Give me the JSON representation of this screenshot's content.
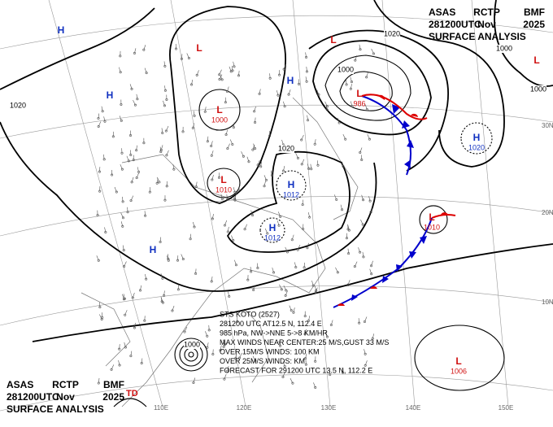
{
  "header_top": [
    [
      "ASAS",
      "RCTP",
      "BMF"
    ],
    [
      "281200UTC",
      "Nov",
      "2025"
    ],
    [
      "SURFACE ANALYSIS"
    ]
  ],
  "header_bottom": [
    [
      "ASAS",
      "RCTP",
      "BMF"
    ],
    [
      "281200UTC",
      "Nov",
      "2025"
    ],
    [
      "SURFACE ANALYSIS"
    ]
  ],
  "centers": [
    {
      "kind": "H"
    },
    {
      "kind": "H"
    },
    {
      "kind": "L"
    },
    {
      "kind": "L"
    },
    {
      "kind": "H"
    },
    {
      "kind": "L",
      "value": 1000
    },
    {
      "kind": "L",
      "value": 1010
    },
    {
      "kind": "H",
      "value": 1012
    },
    {
      "kind": "H",
      "value": 1012
    },
    {
      "kind": "H"
    },
    {
      "kind": "L",
      "value": 986
    },
    {
      "kind": "H",
      "value": 1020
    },
    {
      "kind": "L",
      "value": 1010
    },
    {
      "kind": "L",
      "value": 1006
    },
    {
      "kind": "L"
    }
  ],
  "isobar_labels": [
    1020,
    1000,
    1020,
    1000,
    1000,
    1020,
    1000
  ],
  "latitudes": [
    "30N",
    "20N",
    "10N"
  ],
  "longitudes": [
    "110E",
    "120E",
    "130E",
    "140E",
    "150E"
  ],
  "storm_info": [
    "STS  KOTO  (2527)",
    "281200 UTC  AT12.5 N, 112.4 E",
    "985 hPa, NW->NNE  5->8 KM/HR",
    "MAX WINDS NEAR CENTER:25 M/S,GUST 33 M/S",
    "OVER 15M/S WINDS: 100 KM",
    "OVER 25M/S WINDS:   KM",
    "FORECAST FOR 291200 UTC 13.5 N, 112.2 E"
  ],
  "storm_label": "TD"
}
